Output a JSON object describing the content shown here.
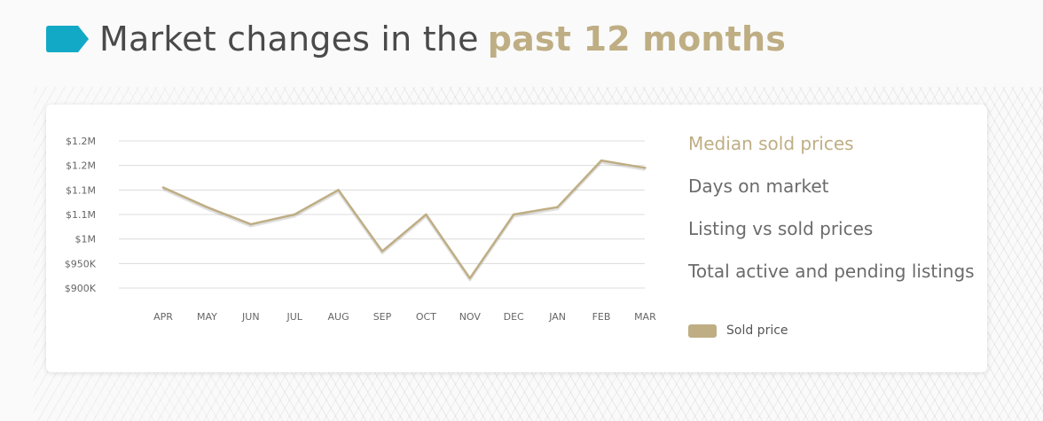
{
  "header": {
    "title_prefix": "Market changes in the",
    "title_accent": "past 12 months"
  },
  "colors": {
    "tag": "#12a9c6",
    "accent": "#bfae84",
    "line": "#bfae84"
  },
  "icons": {
    "tag": "tag-icon"
  },
  "menu": {
    "items": [
      {
        "label": "Median sold prices",
        "active": true
      },
      {
        "label": "Days on market",
        "active": false
      },
      {
        "label": "Listing vs sold prices",
        "active": false
      },
      {
        "label": "Total active and pending listings",
        "active": false
      }
    ]
  },
  "legend": {
    "label": "Sold price"
  },
  "chart_data": {
    "type": "line",
    "title": "",
    "xlabel": "",
    "ylabel": "",
    "categories": [
      "APR",
      "MAY",
      "JUN",
      "JUL",
      "AUG",
      "SEP",
      "OCT",
      "NOV",
      "DEC",
      "JAN",
      "FEB",
      "MAR"
    ],
    "ylim": [
      900000,
      1200000
    ],
    "yticks": [
      900000,
      950000,
      1000000,
      1050000,
      1100000,
      1150000,
      1200000
    ],
    "ytick_labels": [
      "$900K",
      "$950K",
      "$1M",
      "$1.1M",
      "$1.1M",
      "$1.2M",
      "$1.2M"
    ],
    "grid": true,
    "legend_position": "right",
    "series": [
      {
        "name": "Sold price",
        "values": [
          1105000,
          1065000,
          1030000,
          1050000,
          1100000,
          975000,
          1050000,
          920000,
          1050000,
          1065000,
          1160000,
          1145000
        ]
      }
    ]
  }
}
